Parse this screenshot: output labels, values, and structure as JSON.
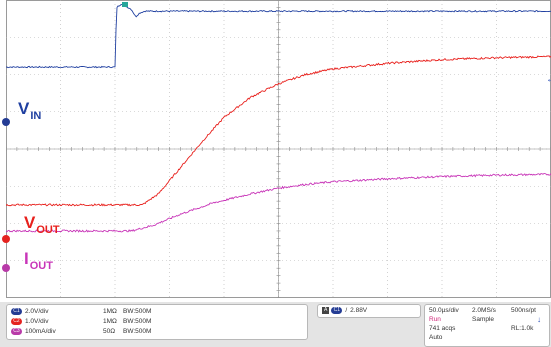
{
  "chart_data": {
    "type": "line",
    "title": "",
    "xlabel": "",
    "ylabel": "",
    "grid": true,
    "divisions": {
      "x": 10,
      "y": 8
    },
    "series": [
      {
        "name": "VIN",
        "color": "#1f3fa0",
        "x_div": [
          0,
          2.0,
          2.03,
          2.12,
          2.3,
          2.38,
          2.45,
          2.55,
          2.7,
          3.0,
          4.0,
          6.0,
          8.0,
          10.0
        ],
        "y_div": [
          2.2,
          2.2,
          3.8,
          3.9,
          3.75,
          3.55,
          3.65,
          3.7,
          3.7,
          3.7,
          3.7,
          3.7,
          3.7,
          3.7
        ]
      },
      {
        "name": "VOUT",
        "color": "#e8201c",
        "x_div": [
          0,
          2.5,
          2.8,
          3.2,
          3.6,
          4.0,
          4.5,
          5.0,
          5.5,
          6.0,
          7.0,
          8.0,
          9.0,
          10.0
        ],
        "y_div": [
          -1.5,
          -1.5,
          -1.2,
          -0.5,
          0.2,
          0.85,
          1.4,
          1.75,
          2.0,
          2.15,
          2.3,
          2.4,
          2.45,
          2.48
        ]
      },
      {
        "name": "IOUT",
        "color": "#c835b8",
        "x_div": [
          0,
          2.3,
          2.7,
          3.2,
          3.8,
          4.5,
          5.0,
          5.5,
          6.0,
          7.0,
          8.0,
          9.0,
          10.0
        ],
        "y_div": [
          -2.2,
          -2.2,
          -2.05,
          -1.75,
          -1.45,
          -1.2,
          -1.05,
          -0.95,
          -0.88,
          -0.8,
          -0.74,
          -0.7,
          -0.68
        ]
      }
    ]
  },
  "labels": {
    "vin": {
      "main": "V",
      "sub": "IN"
    },
    "vout": {
      "main": "V",
      "sub": "OUT"
    },
    "iout": {
      "main": "I",
      "sub": "OUT"
    }
  },
  "channels": [
    {
      "badge": "C1",
      "scale": "2.0V/div",
      "termination": "1MΩ",
      "bandwidth": "BW:500M",
      "color": "#243c94"
    },
    {
      "badge": "C2",
      "scale": "1.0V/div",
      "termination": "1MΩ",
      "bandwidth": "BW:500M",
      "color": "#e52320"
    },
    {
      "badge": "C3",
      "scale": "100mA/div",
      "termination": "50Ω",
      "bandwidth": "BW:500M",
      "color": "#b83aa8"
    }
  ],
  "trigger": {
    "mode": "A",
    "channel": "C1",
    "slope": "/",
    "level": "2.88V"
  },
  "timebase": {
    "time_div": "50.0µs/div",
    "sample_rate": "2.0MS/s",
    "sample_interval": "500ns/pt",
    "state": "Run",
    "acq_mode": "Sample",
    "acqs": "741 acqs",
    "record_length": "RL:1.0k",
    "trigger_mode": "Auto"
  }
}
